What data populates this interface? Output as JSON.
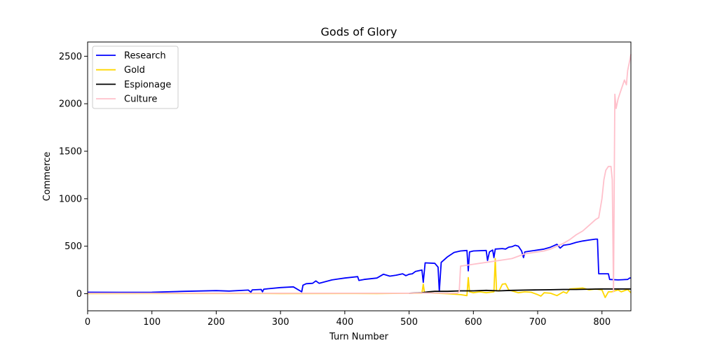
{
  "chart_data": {
    "type": "line",
    "title": "Gods of Glory",
    "xlabel": "Turn Number",
    "ylabel": "Commerce",
    "xlim": [
      0,
      845
    ],
    "ylim": [
      -180,
      2650
    ],
    "x_ticks": [
      0,
      100,
      200,
      300,
      400,
      500,
      600,
      700,
      800
    ],
    "y_ticks": [
      0,
      500,
      1000,
      1500,
      2000,
      2500
    ],
    "grid": false,
    "legend_position": "top-left",
    "series": [
      {
        "name": "Research",
        "color": "#0000ff",
        "points": [
          [
            0,
            15
          ],
          [
            50,
            14
          ],
          [
            100,
            15
          ],
          [
            150,
            25
          ],
          [
            200,
            32
          ],
          [
            220,
            28
          ],
          [
            250,
            38
          ],
          [
            254,
            15
          ],
          [
            256,
            40
          ],
          [
            270,
            45
          ],
          [
            272,
            20
          ],
          [
            274,
            48
          ],
          [
            300,
            65
          ],
          [
            320,
            72
          ],
          [
            333,
            20
          ],
          [
            335,
            90
          ],
          [
            340,
            105
          ],
          [
            350,
            110
          ],
          [
            355,
            135
          ],
          [
            360,
            110
          ],
          [
            380,
            145
          ],
          [
            390,
            155
          ],
          [
            400,
            165
          ],
          [
            420,
            180
          ],
          [
            422,
            140
          ],
          [
            430,
            150
          ],
          [
            450,
            165
          ],
          [
            460,
            205
          ],
          [
            470,
            185
          ],
          [
            480,
            195
          ],
          [
            490,
            210
          ],
          [
            495,
            190
          ],
          [
            500,
            205
          ],
          [
            505,
            210
          ],
          [
            510,
            235
          ],
          [
            520,
            250
          ],
          [
            522,
            120
          ],
          [
            525,
            325
          ],
          [
            540,
            320
          ],
          [
            545,
            280
          ],
          [
            547,
            25
          ],
          [
            550,
            330
          ],
          [
            560,
            390
          ],
          [
            570,
            435
          ],
          [
            580,
            450
          ],
          [
            590,
            455
          ],
          [
            592,
            240
          ],
          [
            594,
            440
          ],
          [
            600,
            450
          ],
          [
            620,
            455
          ],
          [
            622,
            350
          ],
          [
            625,
            440
          ],
          [
            630,
            460
          ],
          [
            632,
            380
          ],
          [
            634,
            470
          ],
          [
            645,
            475
          ],
          [
            650,
            470
          ],
          [
            655,
            490
          ],
          [
            660,
            495
          ],
          [
            665,
            510
          ],
          [
            670,
            500
          ],
          [
            675,
            450
          ],
          [
            678,
            380
          ],
          [
            680,
            440
          ],
          [
            690,
            450
          ],
          [
            700,
            460
          ],
          [
            710,
            470
          ],
          [
            720,
            490
          ],
          [
            725,
            505
          ],
          [
            730,
            520
          ],
          [
            735,
            480
          ],
          [
            740,
            510
          ],
          [
            750,
            520
          ],
          [
            760,
            540
          ],
          [
            770,
            555
          ],
          [
            780,
            565
          ],
          [
            790,
            575
          ],
          [
            793,
            575
          ],
          [
            795,
            210
          ],
          [
            810,
            210
          ],
          [
            812,
            150
          ],
          [
            825,
            145
          ],
          [
            840,
            150
          ],
          [
            843,
            165
          ],
          [
            845,
            165
          ]
        ]
      },
      {
        "name": "Gold",
        "color": "#ffd700",
        "points": [
          [
            0,
            2
          ],
          [
            100,
            3
          ],
          [
            200,
            3
          ],
          [
            300,
            2
          ],
          [
            400,
            3
          ],
          [
            450,
            2
          ],
          [
            500,
            5
          ],
          [
            515,
            5
          ],
          [
            520,
            5
          ],
          [
            522,
            100
          ],
          [
            524,
            10
          ],
          [
            540,
            5
          ],
          [
            560,
            0
          ],
          [
            580,
            -10
          ],
          [
            590,
            -20
          ],
          [
            592,
            170
          ],
          [
            594,
            20
          ],
          [
            600,
            10
          ],
          [
            610,
            20
          ],
          [
            620,
            10
          ],
          [
            632,
            20
          ],
          [
            634,
            370
          ],
          [
            636,
            30
          ],
          [
            640,
            30
          ],
          [
            645,
            100
          ],
          [
            650,
            105
          ],
          [
            655,
            40
          ],
          [
            660,
            30
          ],
          [
            670,
            10
          ],
          [
            680,
            20
          ],
          [
            690,
            15
          ],
          [
            700,
            -10
          ],
          [
            705,
            -25
          ],
          [
            710,
            10
          ],
          [
            720,
            5
          ],
          [
            730,
            -20
          ],
          [
            740,
            20
          ],
          [
            745,
            5
          ],
          [
            750,
            50
          ],
          [
            760,
            55
          ],
          [
            770,
            60
          ],
          [
            780,
            40
          ],
          [
            790,
            50
          ],
          [
            800,
            40
          ],
          [
            805,
            -40
          ],
          [
            810,
            20
          ],
          [
            815,
            20
          ],
          [
            825,
            40
          ],
          [
            830,
            20
          ],
          [
            840,
            45
          ],
          [
            845,
            10
          ]
        ]
      },
      {
        "name": "Espionage",
        "color": "#000000",
        "points": [
          [
            500,
            5
          ],
          [
            520,
            10
          ],
          [
            530,
            20
          ],
          [
            540,
            25
          ],
          [
            560,
            25
          ],
          [
            580,
            30
          ],
          [
            600,
            30
          ],
          [
            620,
            35
          ],
          [
            640,
            30
          ],
          [
            660,
            35
          ],
          [
            680,
            38
          ],
          [
            700,
            40
          ],
          [
            720,
            42
          ],
          [
            740,
            45
          ],
          [
            760,
            45
          ],
          [
            780,
            48
          ],
          [
            800,
            50
          ],
          [
            820,
            50
          ],
          [
            845,
            50
          ]
        ]
      },
      {
        "name": "Culture",
        "color": "#ffc0cb",
        "points": [
          [
            0,
            5
          ],
          [
            100,
            5
          ],
          [
            200,
            5
          ],
          [
            300,
            5
          ],
          [
            400,
            5
          ],
          [
            500,
            5
          ],
          [
            520,
            8
          ],
          [
            560,
            5
          ],
          [
            575,
            5
          ],
          [
            578,
            25
          ],
          [
            580,
            290
          ],
          [
            590,
            300
          ],
          [
            600,
            310
          ],
          [
            620,
            330
          ],
          [
            640,
            350
          ],
          [
            660,
            370
          ],
          [
            680,
            420
          ],
          [
            700,
            440
          ],
          [
            710,
            450
          ],
          [
            720,
            470
          ],
          [
            730,
            500
          ],
          [
            740,
            530
          ],
          [
            750,
            570
          ],
          [
            760,
            620
          ],
          [
            770,
            660
          ],
          [
            780,
            720
          ],
          [
            790,
            780
          ],
          [
            795,
            800
          ],
          [
            800,
            1000
          ],
          [
            803,
            1200
          ],
          [
            806,
            1300
          ],
          [
            810,
            1340
          ],
          [
            814,
            1340
          ],
          [
            816,
            1200
          ],
          [
            818,
            20
          ],
          [
            820,
            2100
          ],
          [
            822,
            1950
          ],
          [
            825,
            2050
          ],
          [
            830,
            2150
          ],
          [
            835,
            2250
          ],
          [
            838,
            2200
          ],
          [
            840,
            2350
          ],
          [
            843,
            2450
          ],
          [
            845,
            2520
          ]
        ]
      }
    ]
  }
}
